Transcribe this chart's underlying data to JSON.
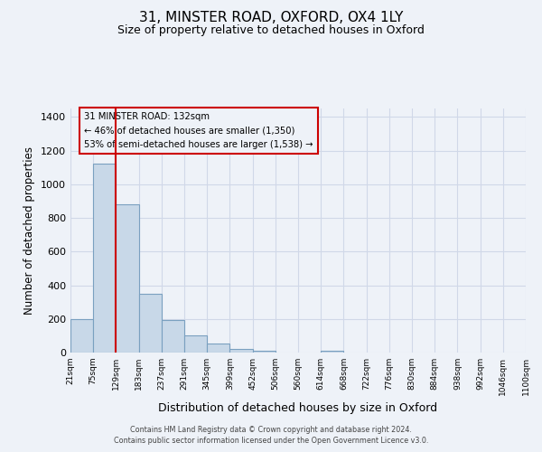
{
  "title": "31, MINSTER ROAD, OXFORD, OX4 1LY",
  "subtitle": "Size of property relative to detached houses in Oxford",
  "xlabel": "Distribution of detached houses by size in Oxford",
  "ylabel": "Number of detached properties",
  "bin_labels": [
    "21sqm",
    "75sqm",
    "129sqm",
    "183sqm",
    "237sqm",
    "291sqm",
    "345sqm",
    "399sqm",
    "452sqm",
    "506sqm",
    "560sqm",
    "614sqm",
    "668sqm",
    "722sqm",
    "776sqm",
    "830sqm",
    "884sqm",
    "938sqm",
    "992sqm",
    "1046sqm",
    "1100sqm"
  ],
  "bar_values": [
    200,
    1120,
    880,
    350,
    195,
    100,
    55,
    20,
    13,
    0,
    0,
    12,
    0,
    0,
    0,
    0,
    0,
    0,
    0,
    0
  ],
  "bar_color": "#c8d8e8",
  "bar_edgecolor": "#7aa0c0",
  "property_line_color": "#cc0000",
  "annotation_title": "31 MINSTER ROAD: 132sqm",
  "annotation_line1": "← 46% of detached houses are smaller (1,350)",
  "annotation_line2": "53% of semi-detached houses are larger (1,538) →",
  "annotation_box_edgecolor": "#cc0000",
  "ylim": [
    0,
    1450
  ],
  "yticks": [
    0,
    200,
    400,
    600,
    800,
    1000,
    1200,
    1400
  ],
  "grid_color": "#d0d8e8",
  "background_color": "#eef2f8",
  "footer_line1": "Contains HM Land Registry data © Crown copyright and database right 2024.",
  "footer_line2": "Contains public sector information licensed under the Open Government Licence v3.0."
}
